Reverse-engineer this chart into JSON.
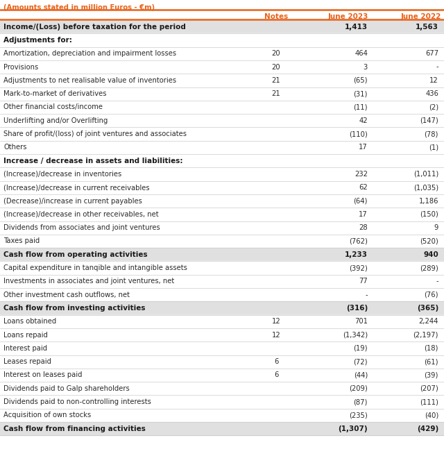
{
  "subtitle": "(Amounts stated in million Euros - €m)",
  "subtitle_color": "#e8631a",
  "header_color": "#e8631a",
  "col_headers": [
    "Notes",
    "June 2023",
    "June 2022"
  ],
  "orange_line_color": "#e8631a",
  "bg_gray": "#e0e0e0",
  "bg_white": "#ffffff",
  "separator_color": "#cccccc",
  "text_dark": "#1a1a1a",
  "text_normal": "#2a2a2a",
  "rows": [
    {
      "label": "Income/(Loss) before taxation for the period",
      "notes": "",
      "jun23": "1,413",
      "jun22": "1,563",
      "style": "bold",
      "bg": "gray"
    },
    {
      "label": "Adjustments for:",
      "notes": "",
      "jun23": "",
      "jun22": "",
      "style": "section",
      "bg": "white"
    },
    {
      "label": "Amortization, depreciation and impairment losses",
      "notes": "20",
      "jun23": "464",
      "jun22": "677",
      "style": "normal",
      "bg": "white"
    },
    {
      "label": "Provisions",
      "notes": "20",
      "jun23": "3",
      "jun22": "-",
      "style": "normal",
      "bg": "white"
    },
    {
      "label": "Adjustments to net realisable value of inventories",
      "notes": "21",
      "jun23": "(65)",
      "jun22": "12",
      "style": "normal",
      "bg": "white"
    },
    {
      "label": "Mark-to-market of derivatives",
      "notes": "21",
      "jun23": "(31)",
      "jun22": "436",
      "style": "normal",
      "bg": "white"
    },
    {
      "label": "Other financial costs/income",
      "notes": "",
      "jun23": "(11)",
      "jun22": "(2)",
      "style": "normal",
      "bg": "white"
    },
    {
      "label": "Underlifting and/or Overlifting",
      "notes": "",
      "jun23": "42",
      "jun22": "(147)",
      "style": "normal",
      "bg": "white"
    },
    {
      "label": "Share of profit/(loss) of joint ventures and associates",
      "notes": "",
      "jun23": "(110)",
      "jun22": "(78)",
      "style": "normal",
      "bg": "white"
    },
    {
      "label": "Others",
      "notes": "",
      "jun23": "17",
      "jun22": "(1)",
      "style": "normal",
      "bg": "white"
    },
    {
      "label": "Increase / decrease in assets and liabilities:",
      "notes": "",
      "jun23": "",
      "jun22": "",
      "style": "section",
      "bg": "white"
    },
    {
      "label": "(Increase)/decrease in inventories",
      "notes": "",
      "jun23": "232",
      "jun22": "(1,011)",
      "style": "normal",
      "bg": "white"
    },
    {
      "label": "(Increase)/decrease in current receivables",
      "notes": "",
      "jun23": "62",
      "jun22": "(1,035)",
      "style": "normal",
      "bg": "white"
    },
    {
      "label": "(Decrease)/increase in current payables",
      "notes": "",
      "jun23": "(64)",
      "jun22": "1,186",
      "style": "normal",
      "bg": "white"
    },
    {
      "label": "(Increase)/decrease in other receivables, net",
      "notes": "",
      "jun23": "17",
      "jun22": "(150)",
      "style": "normal",
      "bg": "white"
    },
    {
      "label": "Dividends from associates and joint ventures",
      "notes": "",
      "jun23": "28",
      "jun22": "9",
      "style": "normal",
      "bg": "white"
    },
    {
      "label": "Taxes paid",
      "notes": "",
      "jun23": "(762)",
      "jun22": "(520)",
      "style": "normal",
      "bg": "white"
    },
    {
      "label": "Cash flow from operating activities",
      "notes": "",
      "jun23": "1,233",
      "jun22": "940",
      "style": "bold",
      "bg": "gray"
    },
    {
      "label": "Capital expenditure in tanqible and intangible assets",
      "notes": "",
      "jun23": "(392)",
      "jun22": "(289)",
      "style": "normal",
      "bg": "white"
    },
    {
      "label": "Investments in associates and joint ventures, net",
      "notes": "",
      "jun23": "77",
      "jun22": "-",
      "style": "normal",
      "bg": "white"
    },
    {
      "label": "Other investment cash outflows, net",
      "notes": "",
      "jun23": "-",
      "jun22": "(76)",
      "style": "normal",
      "bg": "white"
    },
    {
      "label": "Cash flow from investing activities",
      "notes": "",
      "jun23": "(316)",
      "jun22": "(365)",
      "style": "bold",
      "bg": "gray"
    },
    {
      "label": "Loans obtained",
      "notes": "12",
      "jun23": "701",
      "jun22": "2,244",
      "style": "normal",
      "bg": "white"
    },
    {
      "label": "Loans repaid",
      "notes": "12",
      "jun23": "(1,342)",
      "jun22": "(2,197)",
      "style": "normal",
      "bg": "white"
    },
    {
      "label": "Interest paid",
      "notes": "",
      "jun23": "(19)",
      "jun22": "(18)",
      "style": "normal",
      "bg": "white"
    },
    {
      "label": "Leases repaid",
      "notes": "6",
      "jun23": "(72)",
      "jun22": "(61)",
      "style": "normal",
      "bg": "white"
    },
    {
      "label": "Interest on leases paid",
      "notes": "6",
      "jun23": "(44)",
      "jun22": "(39)",
      "style": "normal",
      "bg": "white"
    },
    {
      "label": "Dividends paid to Galp shareholders",
      "notes": "",
      "jun23": "(209)",
      "jun22": "(207)",
      "style": "normal",
      "bg": "white"
    },
    {
      "label": "Dividends paid to non-controlling interests",
      "notes": "",
      "jun23": "(87)",
      "jun22": "(111)",
      "style": "normal",
      "bg": "white"
    },
    {
      "label": "Acquisition of own stocks",
      "notes": "",
      "jun23": "(235)",
      "jun22": "(40)",
      "style": "normal",
      "bg": "white"
    },
    {
      "label": "Cash flow from financing activities",
      "notes": "",
      "jun23": "(1,307)",
      "jun22": "(429)",
      "style": "bold",
      "bg": "gray"
    }
  ],
  "figsize": [
    6.4,
    6.57
  ],
  "dpi": 100
}
